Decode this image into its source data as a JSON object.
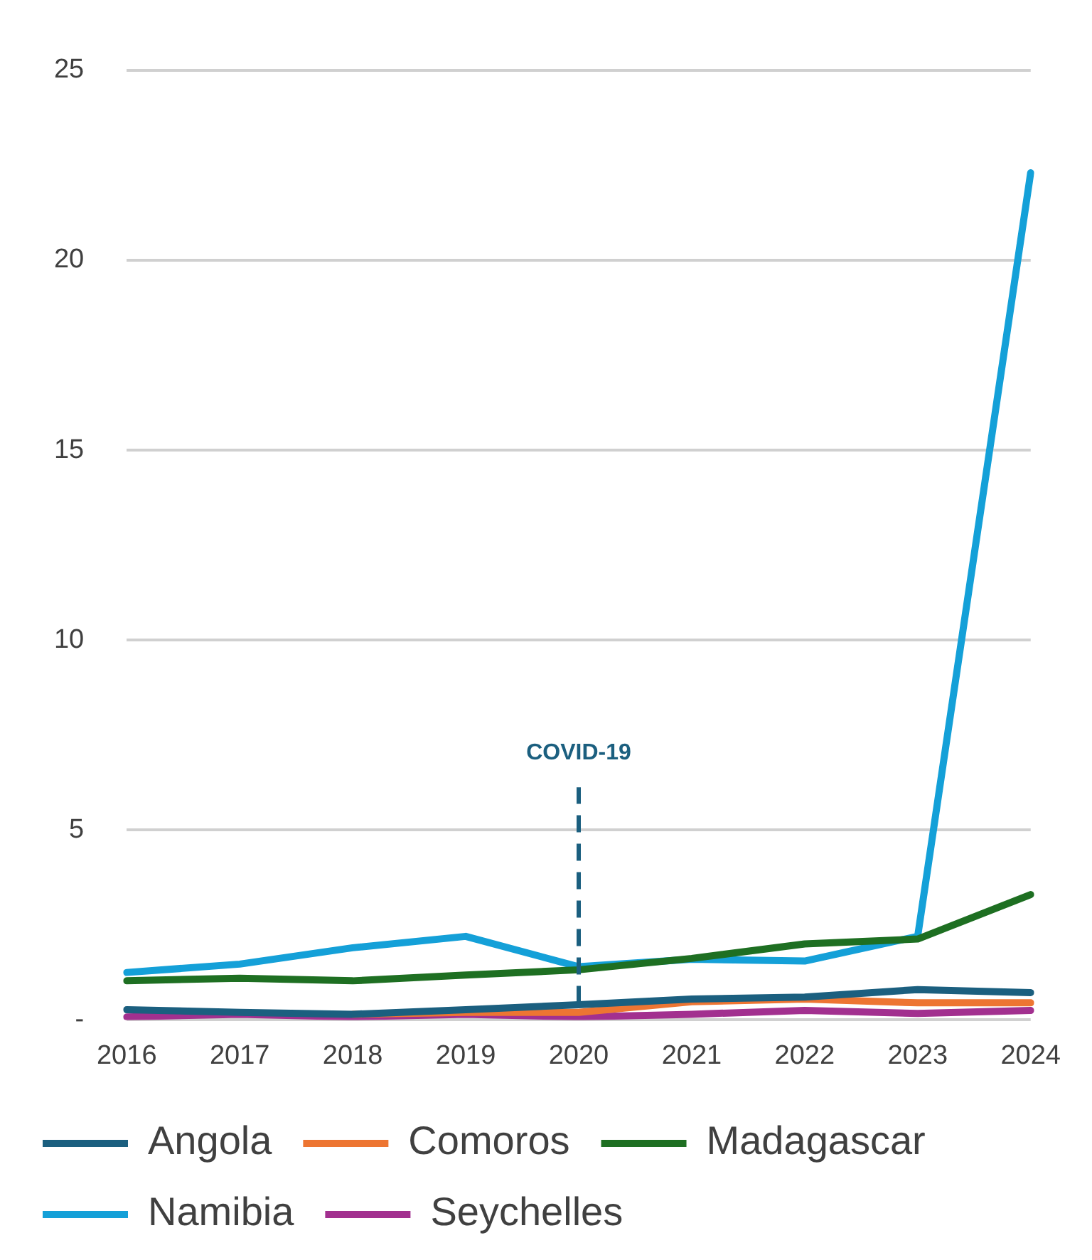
{
  "chart_data": {
    "type": "line",
    "categories": [
      "2016",
      "2017",
      "2018",
      "2019",
      "2020",
      "2021",
      "2022",
      "2023",
      "2024"
    ],
    "series": [
      {
        "name": "Angola",
        "color": "#1b5f7f",
        "values": [
          0.27,
          0.2,
          0.15,
          0.27,
          0.4,
          0.55,
          0.6,
          0.8,
          0.72
        ]
      },
      {
        "name": "Comoros",
        "color": "#ed7532",
        "values": [
          null,
          null,
          0.15,
          0.2,
          0.2,
          0.48,
          0.55,
          0.45,
          0.45
        ]
      },
      {
        "name": "Madagascar",
        "color": "#1e6f22",
        "values": [
          1.03,
          1.1,
          1.03,
          1.18,
          1.32,
          1.62,
          2.0,
          2.13,
          3.3
        ]
      },
      {
        "name": "Namibia",
        "color": "#14a0d8",
        "values": [
          1.25,
          1.47,
          1.9,
          2.2,
          1.4,
          1.6,
          1.55,
          2.2,
          22.3
        ]
      },
      {
        "name": "Seychelles",
        "color": "#a2308f",
        "values": [
          0.08,
          0.15,
          0.08,
          0.15,
          0.08,
          0.15,
          0.25,
          0.17,
          0.25
        ]
      }
    ],
    "ylim": [
      0,
      25
    ],
    "yticks": [
      {
        "value": 0,
        "label": "-"
      },
      5,
      10,
      15,
      20,
      25
    ],
    "grid": "y",
    "legend": "bottom",
    "line_style": "solid",
    "marker": "none",
    "ref_lines": [
      {
        "axis": "x",
        "value": "2020",
        "label": "COVID-19",
        "color": "#1b5f7f",
        "line_style": "dashed"
      }
    ]
  }
}
